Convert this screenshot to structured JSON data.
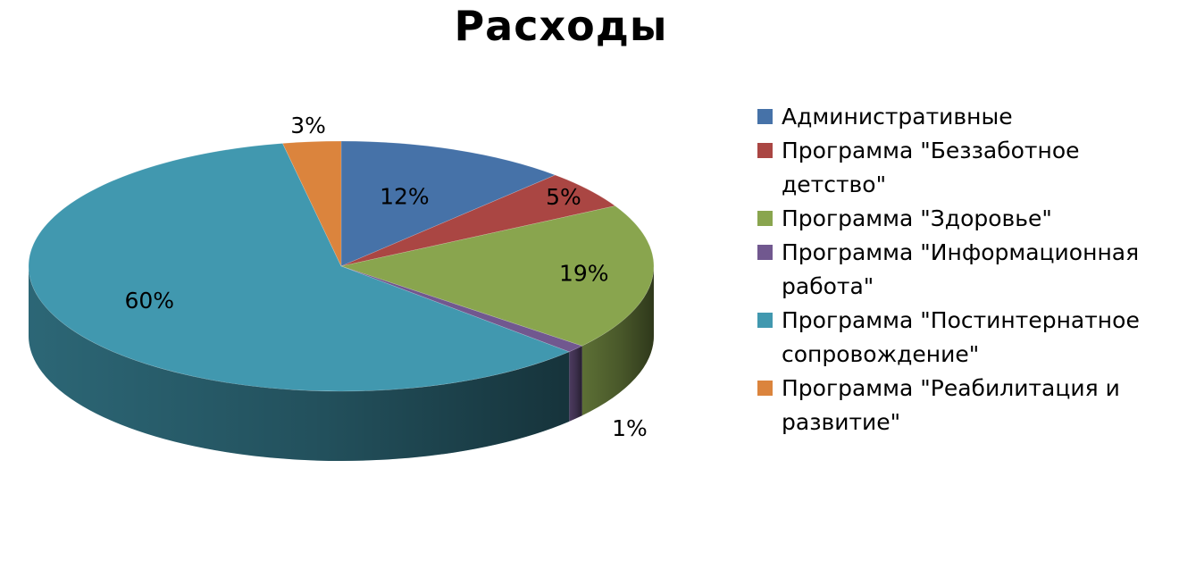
{
  "chart_data": {
    "type": "pie",
    "title": "Расходы",
    "style": "3d",
    "legend_position": "right",
    "slices": [
      {
        "label": "Административные",
        "value": 12,
        "value_label": "12%",
        "color": "#4672A8"
      },
      {
        "label": "Программа \"Беззаботное детство\"",
        "value": 5,
        "value_label": "5%",
        "color": "#AA4643"
      },
      {
        "label": "Программа \"Здоровье\"",
        "value": 19,
        "value_label": "19%",
        "color": "#89A54E"
      },
      {
        "label": "Программа \"Информационная работа\"",
        "value": 1,
        "value_label": "1%",
        "color": "#71588F"
      },
      {
        "label": "Программа \"Постинтернатное сопровождение\"",
        "value": 60,
        "value_label": "60%",
        "color": "#4198AF"
      },
      {
        "label": "Программа \"Реабилитация и развитие\"",
        "value": 3,
        "value_label": "3%",
        "color": "#DB843D"
      }
    ]
  }
}
